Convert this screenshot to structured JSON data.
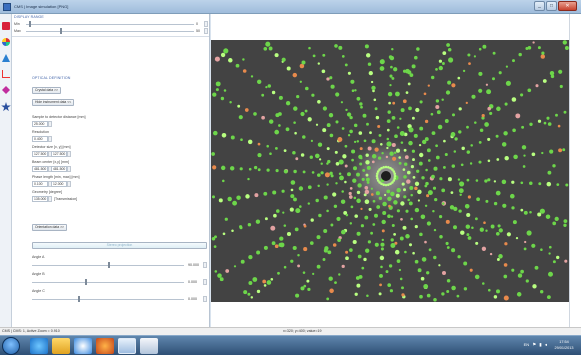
{
  "window": {
    "title": "CMS | Image simulation [PNG]"
  },
  "panel": {
    "display_header": "DISPLAY RANGE",
    "display_rows": [
      {
        "label": "Min",
        "value": "0",
        "level": 0.02
      },
      {
        "label": "Max",
        "value": "50",
        "level": 0.2
      }
    ],
    "optical_header": "OPTICAL DEFINITION",
    "crystal_button": "Crystal data >>",
    "instrument_button": "Hide instrument data <<",
    "fields": [
      {
        "label": "Sample to detector distance [mm]",
        "values": [
          "25.000"
        ]
      },
      {
        "label": "Resolution",
        "values": [
          "0.400"
        ]
      },
      {
        "label": "Detector size [x, y] [mm]",
        "values": [
          "127.500",
          "127.500"
        ]
      },
      {
        "label": "Beam center [x,y] [mm]",
        "values": [
          "481.500",
          "481.500"
        ]
      },
      {
        "label": "Phase length [min, max] [mm]",
        "values": [
          "0.100",
          "12.000"
        ]
      },
      {
        "label": "Geometry [degree]",
        "values": [
          "135.000"
        ],
        "suffix": "[Transmission]"
      }
    ],
    "orientation_button": "Orientation data >>",
    "stereo_button": "Stereo projection",
    "angles": [
      {
        "label": "Angle A",
        "value": "90.000",
        "level": 0.5
      },
      {
        "label": "Angle B",
        "value": "0.000",
        "level": 0.35
      },
      {
        "label": "Angle C",
        "value": "0.000",
        "level": 0.3
      }
    ]
  },
  "status": {
    "left": "CMS | CMS: 1, Active Zoom = 0.910",
    "center": "x=320; y=400; value=19"
  },
  "taskbar": {
    "tray_lang": "EN",
    "clock_time": "17:54",
    "clock_date": "29/01/2013"
  },
  "colors": {
    "pattern_bg": "#434343",
    "spot_green": "#6dd64a",
    "spot_bright": "#b8ff80",
    "spot_orange": "#e88a4c",
    "spot_pink": "#e3a2a2"
  },
  "pattern": {
    "type": "electron-diffraction-spot-pattern",
    "rays": 16,
    "symmetry": "radial"
  }
}
